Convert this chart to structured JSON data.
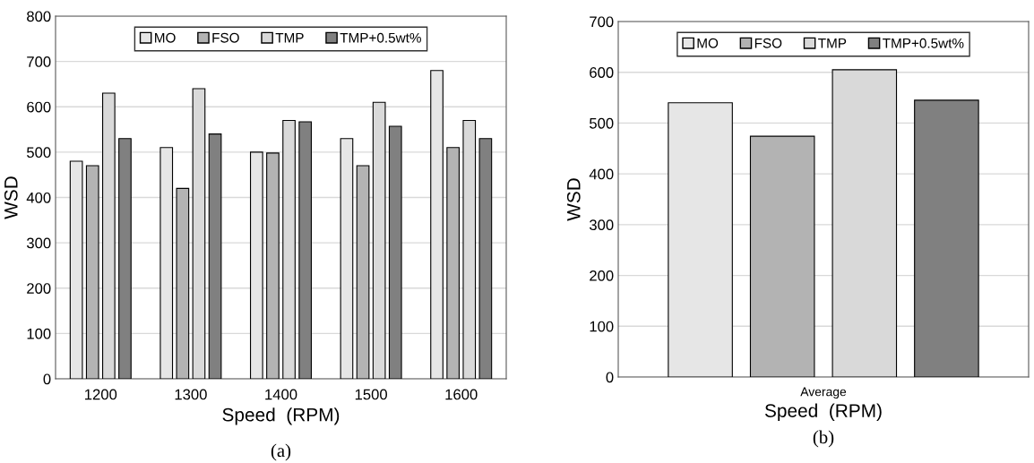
{
  "chart_data": [
    {
      "type": "bar",
      "categories": [
        "1200",
        "1300",
        "1400",
        "1500",
        "1600"
      ],
      "xlabel": "Speed  (RPM)",
      "ylabel": "WSD",
      "ylim": [
        0,
        800
      ],
      "yticks": [
        0,
        100,
        200,
        300,
        400,
        500,
        600,
        700,
        800
      ],
      "grid": "y",
      "legend": "top",
      "annotations": [
        "(a)"
      ],
      "series": [
        {
          "name": "MO",
          "color": "#e6e6e6",
          "values": [
            480,
            510,
            500,
            530,
            680
          ]
        },
        {
          "name": "FSO",
          "color": "#b3b3b3",
          "values": [
            470,
            420,
            498,
            470,
            510
          ]
        },
        {
          "name": "TMP",
          "color": "#d9d9d9",
          "values": [
            630,
            640,
            570,
            610,
            570
          ]
        },
        {
          "name": "TMP+0.5wt%",
          "color": "#808080",
          "values": [
            530,
            540,
            567,
            557,
            530
          ]
        }
      ]
    },
    {
      "type": "bar",
      "categories": [
        "Average"
      ],
      "xlabel": "Speed  (RPM)",
      "ylabel": "WSD",
      "ylim": [
        0,
        700
      ],
      "yticks": [
        0,
        100,
        200,
        300,
        400,
        500,
        600,
        700
      ],
      "grid": "y",
      "legend": "top",
      "annotations": [
        "(b)"
      ],
      "series": [
        {
          "name": "MO",
          "color": "#e6e6e6",
          "values": [
            540
          ]
        },
        {
          "name": "FSO",
          "color": "#b3b3b3",
          "values": [
            474
          ]
        },
        {
          "name": "TMP",
          "color": "#d9d9d9",
          "values": [
            605
          ]
        },
        {
          "name": "TMP+0.5wt%",
          "color": "#808080",
          "values": [
            545
          ]
        }
      ]
    }
  ]
}
